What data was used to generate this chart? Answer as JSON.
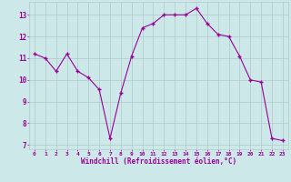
{
  "x": [
    0,
    1,
    2,
    3,
    4,
    5,
    6,
    7,
    8,
    9,
    10,
    11,
    12,
    13,
    14,
    15,
    16,
    17,
    18,
    19,
    20,
    21,
    22,
    23
  ],
  "y": [
    11.2,
    11.0,
    10.4,
    11.2,
    10.4,
    10.1,
    9.55,
    7.3,
    9.4,
    11.1,
    12.4,
    12.6,
    13.0,
    13.0,
    13.0,
    13.3,
    12.6,
    12.1,
    12.0,
    11.1,
    10.0,
    9.9,
    7.3,
    7.2
  ],
  "line_color": "#990099",
  "marker_color": "#990099",
  "bg_color": "#cce8e8",
  "grid_color": "#b0c8c8",
  "xlabel": "Windchill (Refroidissement éolien,°C)",
  "xlabel_color": "#990099",
  "tick_color": "#990099",
  "ylim": [
    6.8,
    13.6
  ],
  "xlim": [
    -0.5,
    23.5
  ],
  "yticks": [
    7,
    8,
    9,
    10,
    11,
    12,
    13
  ],
  "xticks": [
    0,
    1,
    2,
    3,
    4,
    5,
    6,
    7,
    8,
    9,
    10,
    11,
    12,
    13,
    14,
    15,
    16,
    17,
    18,
    19,
    20,
    21,
    22,
    23
  ],
  "figsize": [
    3.2,
    2.0
  ],
  "dpi": 100
}
